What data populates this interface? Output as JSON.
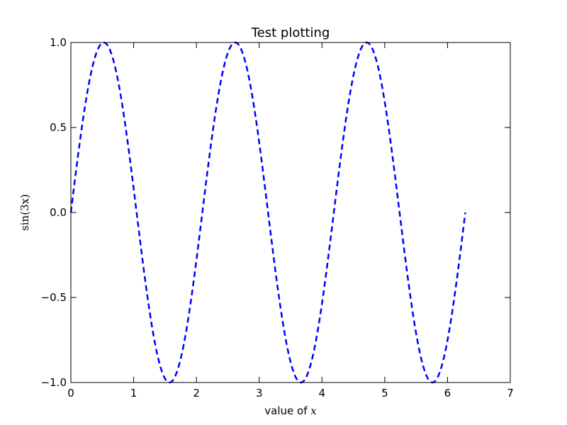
{
  "chart_data": {
    "type": "line",
    "title": "Test plotting",
    "xlabel_text": "value of ",
    "xlabel_math": "x",
    "ylabel_math": "sin(3x)",
    "xlim": [
      0,
      7
    ],
    "ylim": [
      -1.0,
      1.0
    ],
    "x_ticks": [
      0,
      1,
      2,
      3,
      4,
      5,
      6,
      7
    ],
    "x_tick_labels": [
      "0",
      "1",
      "2",
      "3",
      "4",
      "5",
      "6",
      "7"
    ],
    "y_ticks": [
      -1.0,
      -0.5,
      0.0,
      0.5,
      1.0
    ],
    "y_tick_labels": [
      "−1.0",
      "−0.5",
      "0.0",
      "0.5",
      "1.0"
    ],
    "grid": false,
    "series": [
      {
        "function": "sin(3x)",
        "x_range": [
          0,
          6.2832
        ],
        "color": "#0000ff",
        "line_style": "dashed"
      }
    ]
  }
}
